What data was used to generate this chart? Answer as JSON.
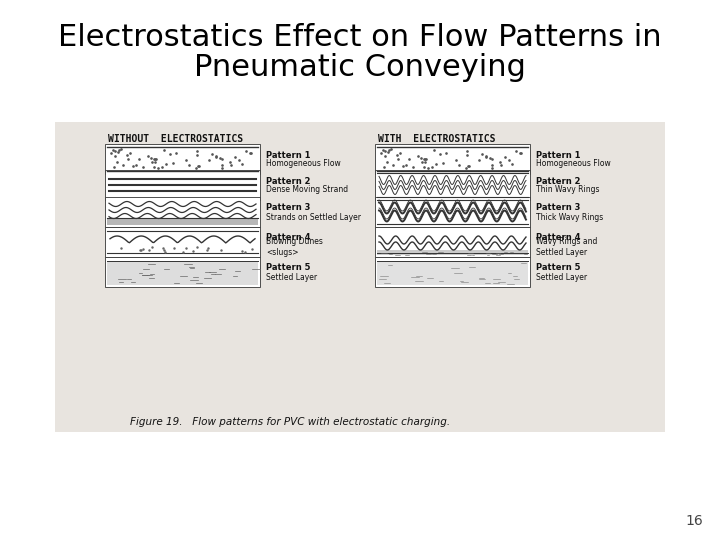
{
  "title_line1": "Electrostatics Effect on Flow Patterns in",
  "title_line2": "Pneumatic Conveying",
  "title_fontsize": 22,
  "title_fontweight": "normal",
  "title_color": "#000000",
  "background_color": "#ffffff",
  "page_number": "16",
  "page_number_fontsize": 10,
  "left_header": "WITHOUT  ELECTROSTATICS",
  "right_header": "WITH  ELECTROSTATICS",
  "figure_caption": "Figure 19.   Flow patterns for PVC with electrostatic charging.",
  "left_patterns": [
    {
      "name": "Pattern 1",
      "desc": "Homogeneous Flow"
    },
    {
      "name": "Pattern 2",
      "desc": "Dense Moving Strand"
    },
    {
      "name": "Pattern 3",
      "desc": "Strands on Settled Layer"
    },
    {
      "name": "Pattern 4",
      "desc": "Blowing Dunes\n<slugs>"
    },
    {
      "name": "Pattern 5",
      "desc": "Settled Layer"
    }
  ],
  "right_patterns": [
    {
      "name": "Pattern 1",
      "desc": "Homogeneous Flow"
    },
    {
      "name": "Pattern 2",
      "desc": "Thin Wavy Rings"
    },
    {
      "name": "Pattern 3",
      "desc": "Thick Wavy Rings"
    },
    {
      "name": "Pattern 4",
      "desc": "Wavy Rings and\nSettled Layer"
    },
    {
      "name": "Pattern 5",
      "desc": "Settled Layer"
    }
  ],
  "header_fontsize": 7,
  "pattern_name_fontsize": 6,
  "pattern_desc_fontsize": 5.5,
  "caption_fontsize": 7.5,
  "fig_bg": "#e8e4df"
}
